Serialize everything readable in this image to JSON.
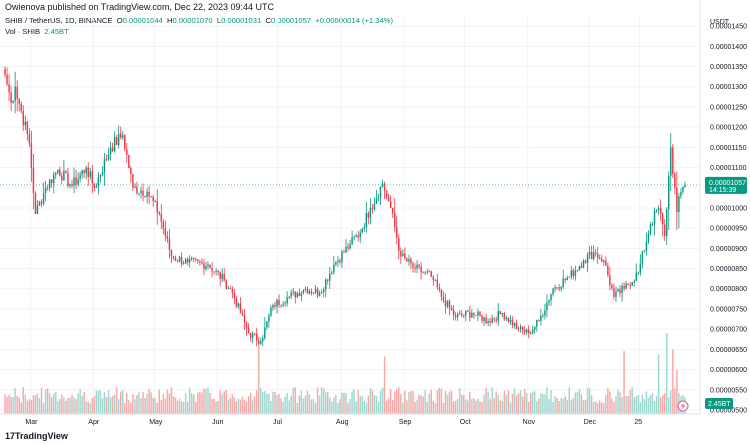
{
  "header": {
    "published": "Owienova published on TradingView.com, Dec 22, 2023 09:44 UTC"
  },
  "legend": {
    "symbol": "SHIB / TetherUS, 1D, BINANCE",
    "open_label": "O",
    "open": "0.00001044",
    "high_label": "H",
    "high": "0.00001070",
    "low_label": "L",
    "low": "0.00001031",
    "close_label": "C",
    "close": "0.00001057",
    "change": "+0.00000014 (+1.34%)",
    "vol_label": "Vol · SHIB",
    "vol_value": "2.45BT"
  },
  "axis": {
    "currency": "USDT",
    "last_price": "0.00001057",
    "countdown": "14:15:39",
    "last_volume": "2.45BT"
  },
  "footer": {
    "logo_mark": "17",
    "logo_text": "TradingView"
  },
  "colors": {
    "up": "#089981",
    "down": "#f23645",
    "up_vol": "#9ed8d0",
    "down_vol": "#f7a9a7",
    "price_badge": "#089981"
  },
  "chart_data": {
    "type": "candlestick",
    "ylim": [
      4.9e-06,
      1.48e-05
    ],
    "y_ticks": [
      "0.00001450",
      "0.00001400",
      "0.00001350",
      "0.00001300",
      "0.00001250",
      "0.00001200",
      "0.00001150",
      "0.00001100",
      "0.00001050",
      "0.00001000",
      "0.00000950",
      "0.00000900",
      "0.00000850",
      "0.00000800",
      "0.00000750",
      "0.00000700",
      "0.00000650",
      "0.00000600",
      "0.00000550",
      "0.00000500"
    ],
    "x_ticks": [
      "Mar",
      "Apr",
      "May",
      "Jun",
      "Jul",
      "Aug",
      "Sep",
      "Oct",
      "Nov",
      "Dec",
      "25"
    ],
    "anchors": [
      [
        0,
        1.33e-05
      ],
      [
        3,
        1.26e-05
      ],
      [
        5,
        1.3e-05
      ],
      [
        12,
        1.16e-05
      ],
      [
        15,
        9.85e-06
      ],
      [
        20,
        1.05e-05
      ],
      [
        26,
        1.095e-05
      ],
      [
        33,
        1.055e-05
      ],
      [
        40,
        1.1e-05
      ],
      [
        44,
        1.05e-05
      ],
      [
        52,
        1.15e-05
      ],
      [
        58,
        1.18e-05
      ],
      [
        63,
        1.05e-05
      ],
      [
        70,
        1.04e-05
      ],
      [
        76,
        9.85e-06
      ],
      [
        82,
        8.8e-06
      ],
      [
        90,
        8.65e-06
      ],
      [
        100,
        8.6e-06
      ],
      [
        108,
        8.2e-06
      ],
      [
        112,
        7.9e-06
      ],
      [
        120,
        6.9e-06
      ],
      [
        126,
        6.7e-06
      ],
      [
        132,
        7.6e-06
      ],
      [
        140,
        7.8e-06
      ],
      [
        148,
        8e-06
      ],
      [
        155,
        7.9e-06
      ],
      [
        162,
        8.6e-06
      ],
      [
        170,
        9.1e-06
      ],
      [
        175,
        9.4e-06
      ],
      [
        180,
        1e-05
      ],
      [
        186,
        1.06e-05
      ],
      [
        190,
        1e-05
      ],
      [
        195,
        8.8e-06
      ],
      [
        202,
        8.5e-06
      ],
      [
        210,
        8.3e-06
      ],
      [
        215,
        7.8e-06
      ],
      [
        222,
        7.3e-06
      ],
      [
        230,
        7.4e-06
      ],
      [
        238,
        7.2e-06
      ],
      [
        245,
        7.4e-06
      ],
      [
        253,
        7e-06
      ],
      [
        258,
        6.9e-06
      ],
      [
        263,
        7.2e-06
      ],
      [
        270,
        8e-06
      ],
      [
        278,
        8.3e-06
      ],
      [
        285,
        8.7e-06
      ],
      [
        290,
        8.9e-06
      ],
      [
        295,
        8.7e-06
      ],
      [
        300,
        7.8e-06
      ],
      [
        305,
        8e-06
      ],
      [
        312,
        8.4e-06
      ],
      [
        318,
        9.6e-06
      ],
      [
        322,
        1e-05
      ],
      [
        325,
        9.3e-06
      ],
      [
        328,
        1.15e-05
      ],
      [
        331,
        9.9e-06
      ],
      [
        333,
        1.04e-05
      ],
      [
        335,
        1.057e-05
      ]
    ],
    "volume_spikes": [
      [
        125,
        4.0
      ],
      [
        187,
        3.2
      ],
      [
        305,
        3.5
      ],
      [
        322,
        3.3
      ],
      [
        326,
        4.5
      ],
      [
        329,
        3.6
      ],
      [
        331,
        2.45
      ]
    ]
  }
}
